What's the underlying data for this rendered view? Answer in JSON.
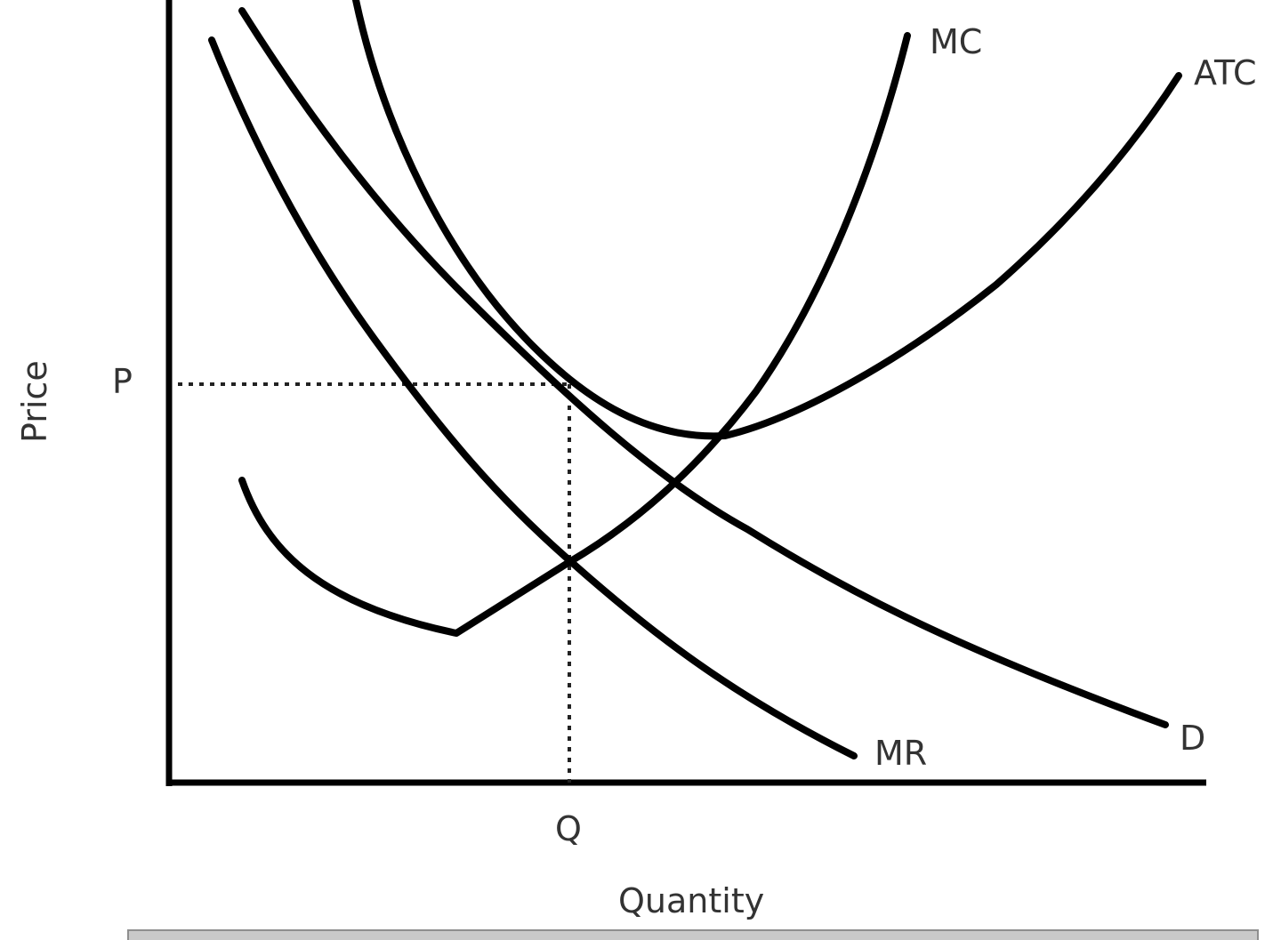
{
  "diagram": {
    "y_axis_label": "Price",
    "x_axis_label": "Quantity",
    "price_marker": "P",
    "quantity_marker": "Q",
    "curves": {
      "mc": "MC",
      "atc": "ATC",
      "demand": "D",
      "mr": "MR"
    }
  }
}
